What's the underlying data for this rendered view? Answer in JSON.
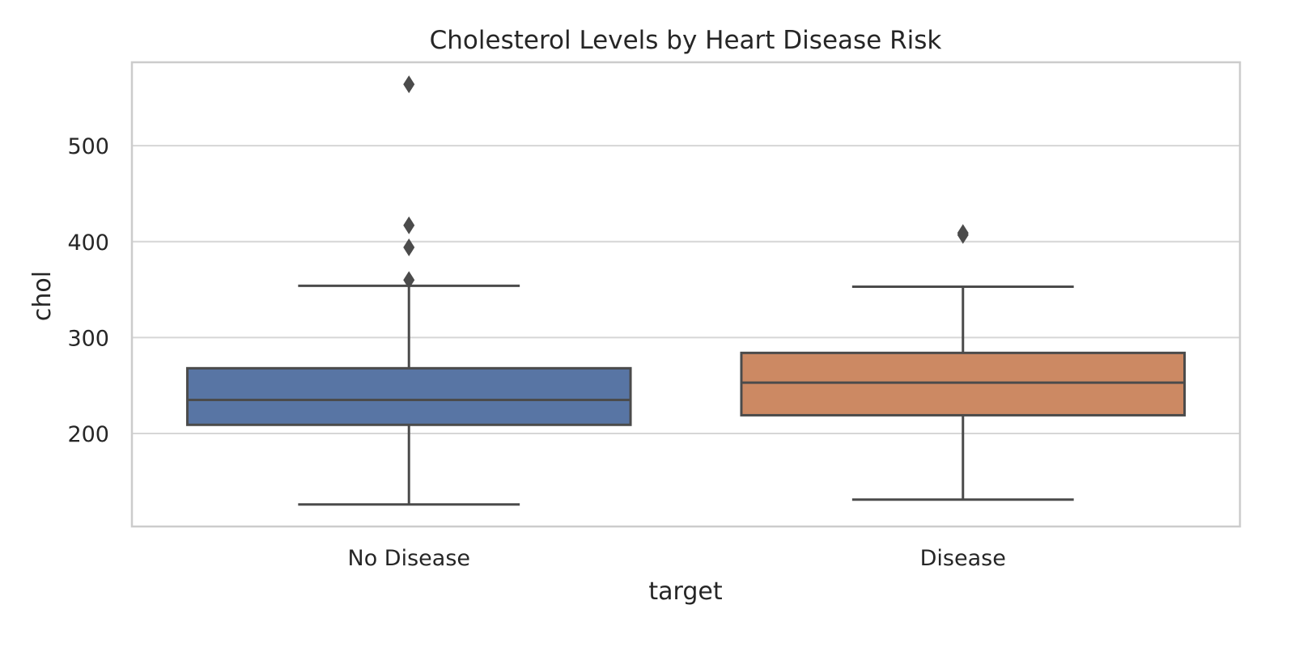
{
  "chart_data": {
    "type": "box",
    "title": "Cholesterol Levels by Heart Disease Risk",
    "xlabel": "target",
    "ylabel": "chol",
    "ylim": [
      103,
      587
    ],
    "yticks": [
      200,
      300,
      400,
      500
    ],
    "grid": "horizontal",
    "categories": [
      "No Disease",
      "Disease"
    ],
    "series": [
      {
        "category": "No Disease",
        "color": "#5875a4",
        "whisker_low": 126,
        "q1": 209,
        "median": 235,
        "q3": 268,
        "whisker_high": 354,
        "outliers": [
          564,
          417,
          394,
          360
        ]
      },
      {
        "category": "Disease",
        "color": "#cc8963",
        "whisker_low": 131,
        "q1": 219,
        "median": 253,
        "q3": 284,
        "whisker_high": 353,
        "outliers": [
          409,
          407
        ]
      }
    ],
    "style": {
      "line_color": "#4b4b4b",
      "grid_color": "#d6d6d6",
      "frame_color": "#cccccc"
    }
  }
}
